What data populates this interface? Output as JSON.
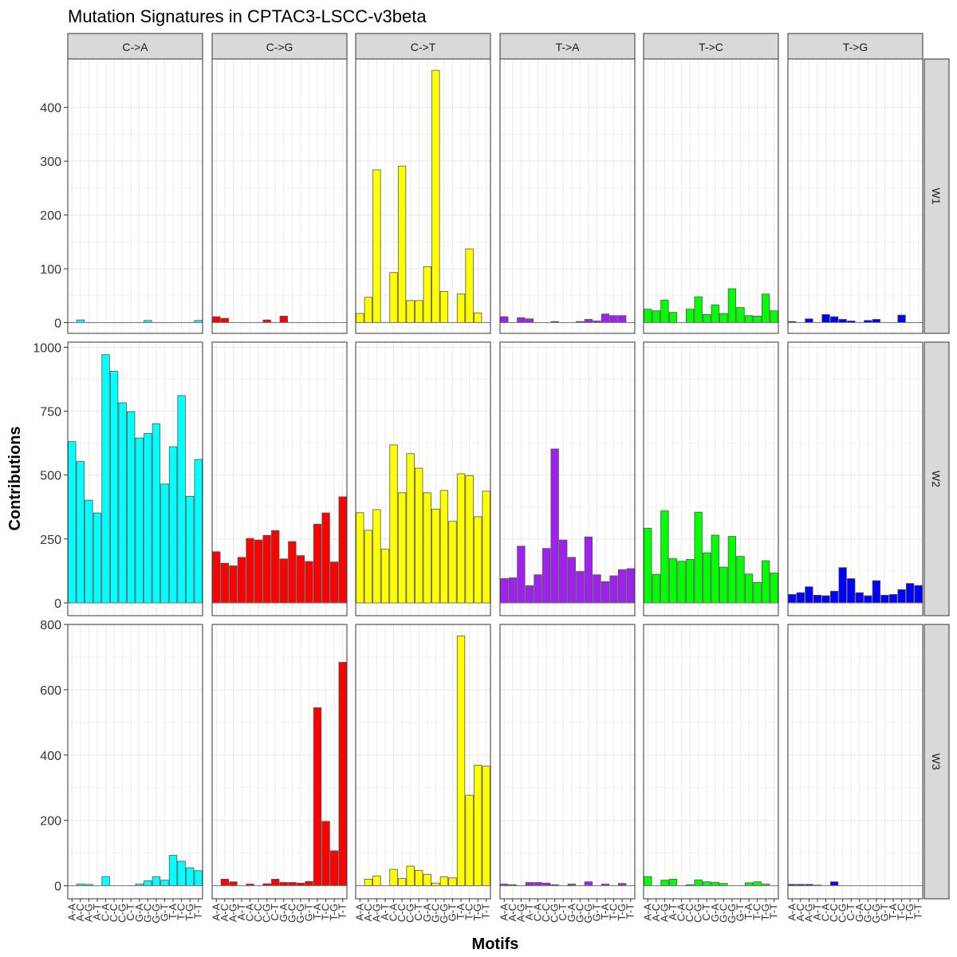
{
  "chart_data": {
    "type": "bar",
    "title": "Mutation Signatures in CPTAC3-LSCC-v3beta",
    "xlabel": "Motifs",
    "ylabel": "Contributions",
    "grid": true,
    "facet_columns": [
      "C->A",
      "C->G",
      "C->T",
      "T->A",
      "T->C",
      "T->G"
    ],
    "facet_rows": [
      "W1",
      "W2",
      "W3"
    ],
    "colors": {
      "C->A": "#00FFFF",
      "C->G": "#FF0000",
      "C->T": "#FFFF00",
      "T->A": "#A020F0",
      "T->C": "#00FF00",
      "T->G": "#0000FF"
    },
    "categories": [
      "A-A",
      "A-C",
      "A-G",
      "A-T",
      "C-A",
      "C-C",
      "C-G",
      "C-T",
      "G-A",
      "G-C",
      "G-G",
      "G-T",
      "T-A",
      "T-C",
      "T-G",
      "T-T"
    ],
    "rows": [
      {
        "name": "W1",
        "ylim": [
          -20,
          490
        ],
        "yticks": [
          0,
          100,
          200,
          300,
          400
        ],
        "series": [
          {
            "name": "C->A",
            "values": [
              0,
              5,
              0,
              0,
              0,
              0,
              0,
              0,
              0,
              4,
              0,
              0,
              0,
              0,
              0,
              4
            ]
          },
          {
            "name": "C->G",
            "values": [
              11,
              8,
              0,
              0,
              0,
              0,
              5,
              0,
              12,
              0,
              0,
              0,
              0,
              0,
              0,
              0
            ]
          },
          {
            "name": "C->T",
            "values": [
              17,
              47,
              284,
              0,
              93,
              291,
              41,
              41,
              104,
              469,
              58,
              0,
              53,
              137,
              18,
              0
            ]
          },
          {
            "name": "T->A",
            "values": [
              11,
              0,
              9,
              7,
              0,
              0,
              2,
              0,
              0,
              2,
              6,
              3,
              16,
              13,
              13,
              0
            ]
          },
          {
            "name": "T->C",
            "values": [
              25,
              22,
              42,
              19,
              0,
              25,
              48,
              15,
              33,
              17,
              63,
              28,
              13,
              12,
              53,
              22
            ]
          },
          {
            "name": "T->G",
            "values": [
              2,
              0,
              7,
              0,
              15,
              11,
              6,
              3,
              0,
              4,
              6,
              0,
              0,
              14,
              0,
              0
            ]
          }
        ]
      },
      {
        "name": "W2",
        "ylim": [
          -50,
          1020
        ],
        "yticks": [
          0,
          250,
          500,
          750,
          1000
        ],
        "series": [
          {
            "name": "C->A",
            "values": [
              631,
              553,
              402,
              352,
              971,
              906,
              783,
              748,
              645,
              663,
              701,
              465,
              611,
              811,
              417,
              561
            ]
          },
          {
            "name": "C->G",
            "values": [
              200,
              155,
              145,
              178,
              252,
              246,
              264,
              283,
              172,
              240,
              185,
              162,
              308,
              352,
              160,
              415
            ]
          },
          {
            "name": "C->T",
            "values": [
              353,
              284,
              365,
              210,
              618,
              431,
              584,
              527,
              431,
              367,
              440,
              319,
              505,
              498,
              337,
              437
            ]
          },
          {
            "name": "T->A",
            "values": [
              95,
              98,
              222,
              67,
              110,
              213,
              602,
              246,
              178,
              123,
              258,
              110,
              83,
              106,
              130,
              134
            ]
          },
          {
            "name": "T->C",
            "values": [
              292,
              112,
              360,
              173,
              163,
              170,
              355,
              196,
              265,
              140,
              260,
              182,
              113,
              80,
              165,
              117
            ]
          },
          {
            "name": "T->G",
            "values": [
              33,
              40,
              63,
              30,
              28,
              46,
              138,
              95,
              40,
              28,
              87,
              30,
              33,
              52,
              76,
              68
            ]
          }
        ]
      },
      {
        "name": "W3",
        "ylim": [
          -40,
          800
        ],
        "yticks": [
          0,
          200,
          400,
          600,
          800
        ],
        "series": [
          {
            "name": "C->A",
            "values": [
              0,
              5,
              4,
              0,
              28,
              0,
              0,
              0,
              5,
              15,
              28,
              17,
              93,
              75,
              55,
              46
            ]
          },
          {
            "name": "C->G",
            "values": [
              0,
              20,
              12,
              0,
              5,
              0,
              6,
              20,
              10,
              10,
              8,
              13,
              545,
              197,
              107,
              684
            ]
          },
          {
            "name": "C->T",
            "values": [
              0,
              20,
              30,
              0,
              50,
              22,
              60,
              47,
              35,
              8,
              27,
              24,
              765,
              277,
              369,
              366
            ]
          },
          {
            "name": "T->A",
            "values": [
              5,
              3,
              0,
              10,
              10,
              8,
              3,
              0,
              5,
              0,
              12,
              0,
              5,
              0,
              7,
              0
            ]
          },
          {
            "name": "T->C",
            "values": [
              28,
              0,
              17,
              20,
              0,
              3,
              18,
              12,
              10,
              7,
              0,
              0,
              9,
              12,
              5,
              0
            ]
          },
          {
            "name": "T->G",
            "values": [
              4,
              4,
              4,
              2,
              0,
              12,
              0,
              0,
              0,
              0,
              0,
              0,
              0,
              0,
              0,
              0
            ]
          }
        ]
      }
    ]
  }
}
